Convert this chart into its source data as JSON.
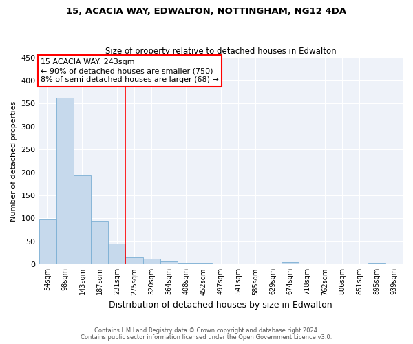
{
  "title1": "15, ACACIA WAY, EDWALTON, NOTTINGHAM, NG12 4DA",
  "title2": "Size of property relative to detached houses in Edwalton",
  "xlabel": "Distribution of detached houses by size in Edwalton",
  "ylabel": "Number of detached properties",
  "bin_labels": [
    "54sqm",
    "98sqm",
    "143sqm",
    "187sqm",
    "231sqm",
    "275sqm",
    "320sqm",
    "364sqm",
    "408sqm",
    "452sqm",
    "497sqm",
    "541sqm",
    "585sqm",
    "629sqm",
    "674sqm",
    "718sqm",
    "762sqm",
    "806sqm",
    "851sqm",
    "895sqm",
    "939sqm"
  ],
  "bar_heights": [
    97,
    362,
    193,
    94,
    45,
    16,
    12,
    6,
    4,
    3,
    0,
    0,
    0,
    0,
    5,
    0,
    2,
    0,
    0,
    3,
    1
  ],
  "bar_color": "#c6d9ec",
  "bar_edge_color": "#7bafd4",
  "property_line_label": "15 ACACIA WAY: 243sqm",
  "annotation_line1": "← 90% of detached houses are smaller (750)",
  "annotation_line2": "8% of semi-detached houses are larger (68) →",
  "red_line_bin": 4.5,
  "ylim": [
    0,
    450
  ],
  "yticks": [
    0,
    50,
    100,
    150,
    200,
    250,
    300,
    350,
    400,
    450
  ],
  "footer1": "Contains HM Land Registry data © Crown copyright and database right 2024.",
  "footer2": "Contains public sector information licensed under the Open Government Licence v3.0.",
  "bg_color": "#eef2f9",
  "grid_color": "#ffffff",
  "title1_fontsize": 9.5,
  "title2_fontsize": 8.5
}
